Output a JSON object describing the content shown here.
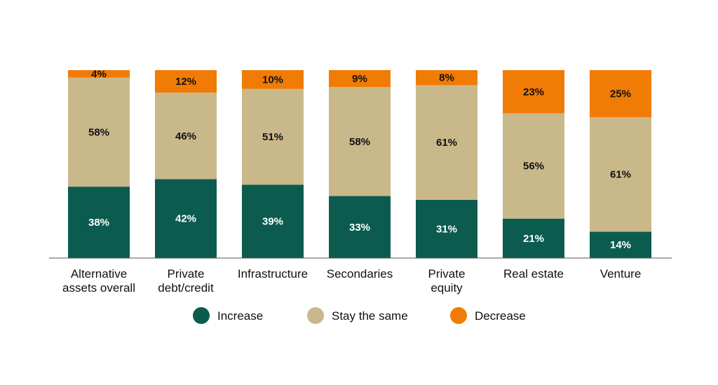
{
  "chart_data": {
    "type": "bar",
    "stacked": true,
    "orientation": "vertical",
    "categories": [
      [
        "Alternative",
        "assets overall"
      ],
      [
        "Private",
        "debt/credit"
      ],
      [
        "Infrastructure"
      ],
      [
        "Secondaries"
      ],
      [
        "Private",
        "equity"
      ],
      [
        "Real estate"
      ],
      [
        "Venture"
      ]
    ],
    "series": [
      {
        "name": "Increase",
        "color": "#0b5c4f",
        "values": [
          38,
          42,
          39,
          33,
          31,
          21,
          14
        ]
      },
      {
        "name": "Stay the same",
        "color": "#c9b98a",
        "values": [
          58,
          46,
          51,
          58,
          61,
          56,
          61
        ]
      },
      {
        "name": "Decrease",
        "color": "#f07b05",
        "values": [
          4,
          12,
          10,
          9,
          8,
          23,
          25
        ]
      }
    ],
    "value_suffix": "%",
    "ylim": [
      0,
      100
    ],
    "grid": false,
    "legend": "bottom-center",
    "title": "",
    "xlabel": "",
    "ylabel": ""
  }
}
